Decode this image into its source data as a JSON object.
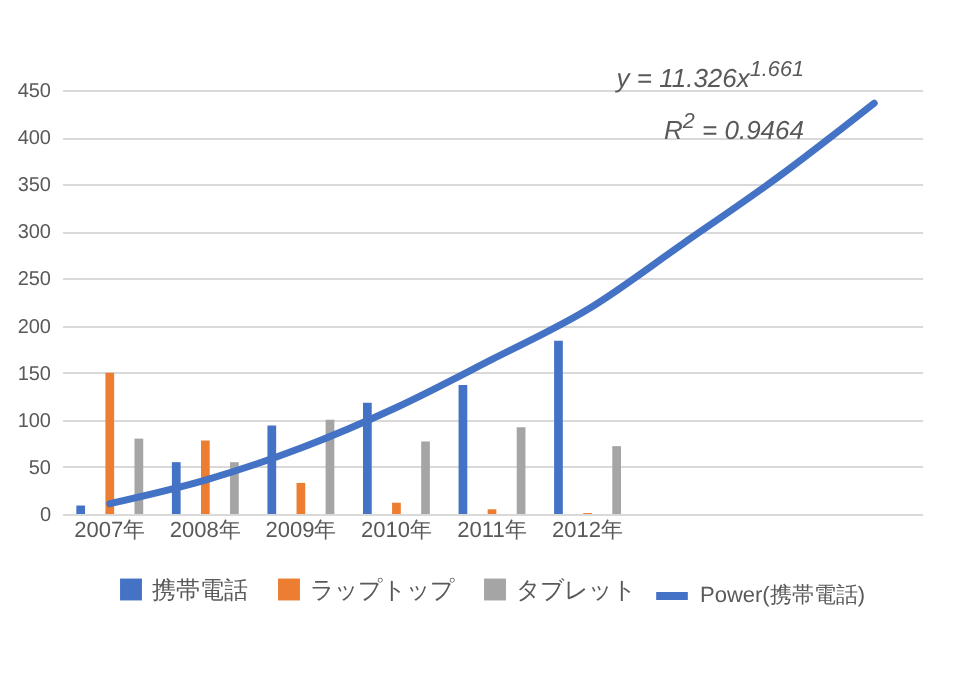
{
  "chart_data": {
    "type": "bar",
    "categories": [
      "2007年",
      "2008年",
      "2009年",
      "2010年",
      "2011年",
      "2012年",
      null,
      null,
      null
    ],
    "series": [
      {
        "name": "携帯電話",
        "color": "#4472c4",
        "values": [
          9,
          55,
          94,
          118,
          137,
          184,
          null,
          null,
          null
        ]
      },
      {
        "name": "ラップトップ",
        "color": "#ed7d31",
        "values": [
          150,
          78,
          33,
          12,
          5,
          1,
          null,
          null,
          null
        ]
      },
      {
        "name": "タブレット",
        "color": "#a5a5a5",
        "values": [
          80,
          55,
          100,
          77,
          92,
          72,
          null,
          null,
          null
        ]
      },
      {
        "name": "Power(携帯電話)",
        "type": "line",
        "color": "#4472c4",
        "values": [
          11,
          36,
          70,
          113,
          164,
          217,
          287,
          358,
          436
        ]
      }
    ],
    "ylim": [
      0,
      450
    ],
    "yticks": [
      0,
      50,
      100,
      150,
      200,
      250,
      300,
      350,
      400,
      450
    ],
    "grid": "y",
    "legend": "bottom",
    "marker": "none",
    "annotations": [
      "y = 11.326x$^{1.661}$",
      "R$^{2}$ = 0.9464"
    ]
  }
}
